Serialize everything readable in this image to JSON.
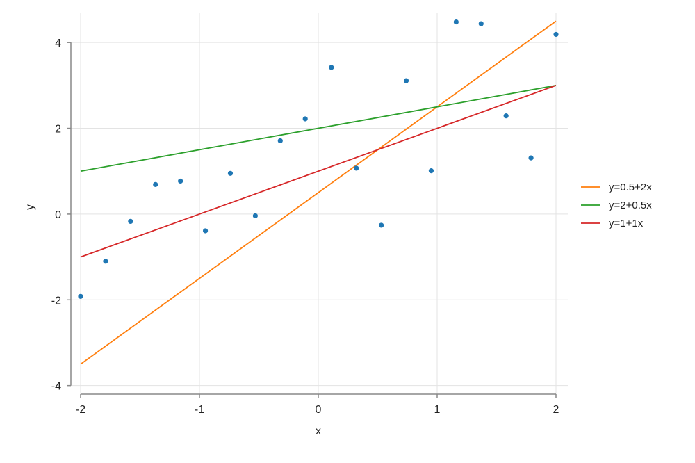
{
  "chart_data": {
    "type": "scatter",
    "xlabel": "x",
    "ylabel": "y",
    "xlim": [
      -2,
      2
    ],
    "ylim": [
      -4.2,
      4.7
    ],
    "xticks": [
      -2,
      -1,
      0,
      1,
      2
    ],
    "yticks": [
      -4,
      -2,
      0,
      2,
      4
    ],
    "grid": true,
    "legend_position": "right",
    "points": {
      "color": "#1f77b4",
      "x": [
        -2.0,
        -1.79,
        -1.58,
        -1.37,
        -1.16,
        -0.95,
        -0.74,
        -0.53,
        -0.32,
        -0.11,
        0.11,
        0.32,
        0.53,
        0.74,
        0.95,
        1.16,
        1.37,
        1.58,
        1.79,
        2.0
      ],
      "y": [
        -1.92,
        -1.1,
        -0.17,
        0.69,
        0.77,
        -0.39,
        0.95,
        -0.04,
        1.71,
        2.22,
        3.42,
        1.07,
        -0.26,
        3.11,
        1.01,
        4.48,
        4.44,
        2.29,
        1.31,
        4.19
      ]
    },
    "series": [
      {
        "name": "y=0.5+2x",
        "intercept": 0.5,
        "slope": 2,
        "color": "#ff7f0e"
      },
      {
        "name": "y=2+0.5x",
        "intercept": 2,
        "slope": 0.5,
        "color": "#2ca02c"
      },
      {
        "name": "y=1+1x",
        "intercept": 1,
        "slope": 1,
        "color": "#d62728"
      }
    ]
  }
}
